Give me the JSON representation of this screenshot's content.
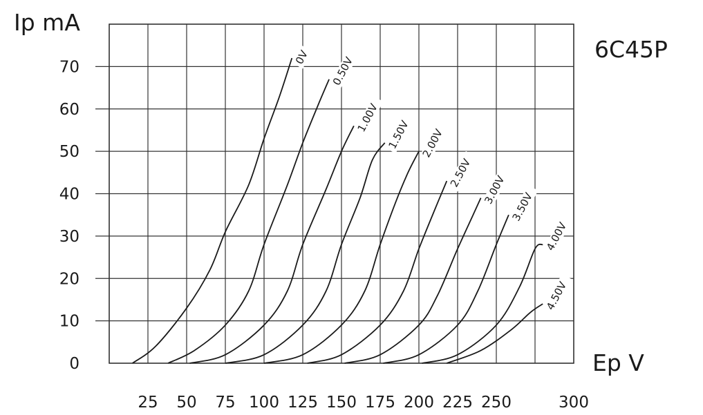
{
  "chart_data": {
    "type": "line",
    "title": "6C45P",
    "ylabel": "Ip mA",
    "xlabel": "Ep V",
    "xlim": [
      0,
      300
    ],
    "ylim": [
      0,
      80
    ],
    "x_ticks": [
      "25",
      "50",
      "75",
      "100",
      "125",
      "150",
      "175",
      "200",
      "225",
      "250",
      "300"
    ],
    "y_ticks": [
      "0",
      "10",
      "20",
      "30",
      "40",
      "50",
      "60",
      "70"
    ],
    "grid": true,
    "series": [
      {
        "name": "0V",
        "points": [
          [
            15,
            0
          ],
          [
            30,
            4
          ],
          [
            50,
            13
          ],
          [
            65,
            22
          ],
          [
            75,
            31
          ],
          [
            90,
            42
          ],
          [
            100,
            53
          ],
          [
            110,
            63
          ],
          [
            118,
            72
          ]
        ]
      },
      {
        "name": "0.50V",
        "points": [
          [
            38,
            0
          ],
          [
            55,
            3
          ],
          [
            75,
            9
          ],
          [
            90,
            17
          ],
          [
            100,
            28
          ],
          [
            115,
            42
          ],
          [
            125,
            52
          ],
          [
            135,
            61
          ],
          [
            142,
            67
          ]
        ]
      },
      {
        "name": "1.00V",
        "points": [
          [
            52,
            0
          ],
          [
            75,
            2
          ],
          [
            100,
            9
          ],
          [
            115,
            17
          ],
          [
            125,
            28
          ],
          [
            140,
            41
          ],
          [
            150,
            50
          ],
          [
            158,
            56
          ]
        ]
      },
      {
        "name": "1.50V",
        "points": [
          [
            75,
            0
          ],
          [
            100,
            2
          ],
          [
            125,
            9
          ],
          [
            140,
            17
          ],
          [
            150,
            28
          ],
          [
            162,
            39
          ],
          [
            170,
            48
          ],
          [
            178,
            52
          ]
        ]
      },
      {
        "name": "2.00V",
        "points": [
          [
            100,
            0
          ],
          [
            125,
            2
          ],
          [
            150,
            9
          ],
          [
            165,
            17
          ],
          [
            175,
            28
          ],
          [
            185,
            38
          ],
          [
            193,
            45
          ],
          [
            200,
            50
          ]
        ]
      },
      {
        "name": "2.50V",
        "points": [
          [
            128,
            0
          ],
          [
            150,
            2
          ],
          [
            175,
            9
          ],
          [
            190,
            17
          ],
          [
            200,
            27
          ],
          [
            210,
            36
          ],
          [
            218,
            43
          ]
        ]
      },
      {
        "name": "3.00V",
        "points": [
          [
            152,
            0
          ],
          [
            175,
            2
          ],
          [
            200,
            9
          ],
          [
            212,
            16
          ],
          [
            225,
            27
          ],
          [
            235,
            35
          ],
          [
            240,
            39
          ]
        ]
      },
      {
        "name": "3.50V",
        "points": [
          [
            177,
            0
          ],
          [
            200,
            2
          ],
          [
            225,
            9
          ],
          [
            238,
            17
          ],
          [
            250,
            28
          ],
          [
            258,
            35
          ]
        ]
      },
      {
        "name": "4.00V",
        "points": [
          [
            202,
            0
          ],
          [
            225,
            2
          ],
          [
            250,
            9
          ],
          [
            265,
            18
          ],
          [
            275,
            27
          ],
          [
            280,
            28
          ]
        ]
      },
      {
        "name": "4.50V",
        "points": [
          [
            218,
            0
          ],
          [
            240,
            3
          ],
          [
            260,
            8
          ],
          [
            272,
            12
          ],
          [
            280,
            14
          ]
        ]
      }
    ]
  }
}
